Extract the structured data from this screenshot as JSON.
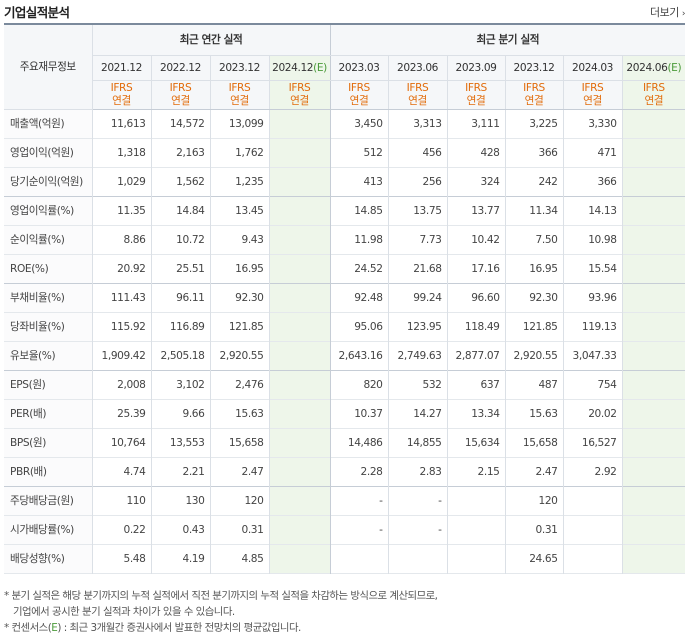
{
  "header": {
    "title": "기업실적분석",
    "more_label": "더보기"
  },
  "table": {
    "item_header": "주요재무정보",
    "annual_group": "최근 연간 실적",
    "quarter_group": "최근 분기 실적",
    "annual_periods": [
      "2021.12",
      "2022.12",
      "2023.12",
      "2024.12(E)"
    ],
    "quarter_periods": [
      "2023.03",
      "2023.06",
      "2023.09",
      "2023.12",
      "2024.03",
      "2024.06(E)"
    ],
    "basis_top": "IFRS",
    "basis_bottom": "연결",
    "rows": [
      {
        "name": "매출액(억원)",
        "a": [
          "11,613",
          "14,572",
          "13,099",
          ""
        ],
        "q": [
          "3,450",
          "3,313",
          "3,111",
          "3,225",
          "3,330",
          ""
        ]
      },
      {
        "name": "영업이익(억원)",
        "a": [
          "1,318",
          "2,163",
          "1,762",
          ""
        ],
        "q": [
          "512",
          "456",
          "428",
          "366",
          "471",
          ""
        ]
      },
      {
        "name": "당기순이익(억원)",
        "a": [
          "1,029",
          "1,562",
          "1,235",
          ""
        ],
        "q": [
          "413",
          "256",
          "324",
          "242",
          "366",
          ""
        ]
      },
      {
        "name": "영업이익률(%)",
        "a": [
          "11.35",
          "14.84",
          "13.45",
          ""
        ],
        "q": [
          "14.85",
          "13.75",
          "13.77",
          "11.34",
          "14.13",
          ""
        ]
      },
      {
        "name": "순이익률(%)",
        "a": [
          "8.86",
          "10.72",
          "9.43",
          ""
        ],
        "q": [
          "11.98",
          "7.73",
          "10.42",
          "7.50",
          "10.98",
          ""
        ]
      },
      {
        "name": "ROE(%)",
        "a": [
          "20.92",
          "25.51",
          "16.95",
          ""
        ],
        "q": [
          "24.52",
          "21.68",
          "17.16",
          "16.95",
          "15.54",
          ""
        ]
      },
      {
        "name": "부채비율(%)",
        "a": [
          "111.43",
          "96.11",
          "92.30",
          ""
        ],
        "q": [
          "92.48",
          "99.24",
          "96.60",
          "92.30",
          "93.96",
          ""
        ]
      },
      {
        "name": "당좌비율(%)",
        "a": [
          "115.92",
          "116.89",
          "121.85",
          ""
        ],
        "q": [
          "95.06",
          "123.95",
          "118.49",
          "121.85",
          "119.13",
          ""
        ]
      },
      {
        "name": "유보율(%)",
        "a": [
          "1,909.42",
          "2,505.18",
          "2,920.55",
          ""
        ],
        "q": [
          "2,643.16",
          "2,749.63",
          "2,877.07",
          "2,920.55",
          "3,047.33",
          ""
        ]
      },
      {
        "name": "EPS(원)",
        "a": [
          "2,008",
          "3,102",
          "2,476",
          ""
        ],
        "q": [
          "820",
          "532",
          "637",
          "487",
          "754",
          ""
        ]
      },
      {
        "name": "PER(배)",
        "a": [
          "25.39",
          "9.66",
          "15.63",
          ""
        ],
        "q": [
          "10.37",
          "14.27",
          "13.34",
          "15.63",
          "20.02",
          ""
        ]
      },
      {
        "name": "BPS(원)",
        "a": [
          "10,764",
          "13,553",
          "15,658",
          ""
        ],
        "q": [
          "14,486",
          "14,855",
          "15,634",
          "15,658",
          "16,527",
          ""
        ]
      },
      {
        "name": "PBR(배)",
        "a": [
          "4.74",
          "2.21",
          "2.47",
          ""
        ],
        "q": [
          "2.28",
          "2.83",
          "2.15",
          "2.47",
          "2.92",
          ""
        ]
      },
      {
        "name": "주당배당금(원)",
        "a": [
          "110",
          "130",
          "120",
          ""
        ],
        "q": [
          "-",
          "-",
          "",
          "120",
          "",
          ""
        ]
      },
      {
        "name": "시가배당률(%)",
        "a": [
          "0.22",
          "0.43",
          "0.31",
          ""
        ],
        "q": [
          "-",
          "-",
          "",
          "0.31",
          "",
          ""
        ]
      },
      {
        "name": "배당성향(%)",
        "a": [
          "5.48",
          "4.19",
          "4.85",
          ""
        ],
        "q": [
          "",
          "",
          "",
          "24.65",
          "",
          ""
        ]
      }
    ]
  },
  "notes": {
    "line1": "* 분기 실적은 해당 분기까지의 누적 실적에서 직전 분기까지의 누적 실적을 차감하는 방식으로 계산되므로,",
    "line2": "기업에서 공시한 분기 실적과 차이가 있을 수 있습니다.",
    "line3_pre": "* 컨센서스(",
    "line3_e": "E",
    "line3_post": ") : 최근 3개월간 증권사에서 발표한 전망치의 평균값입니다."
  },
  "colors": {
    "accent_orange": "#e26c0b",
    "estimate_green": "#4b9b3a",
    "estimate_bg": "#eef6ea"
  }
}
